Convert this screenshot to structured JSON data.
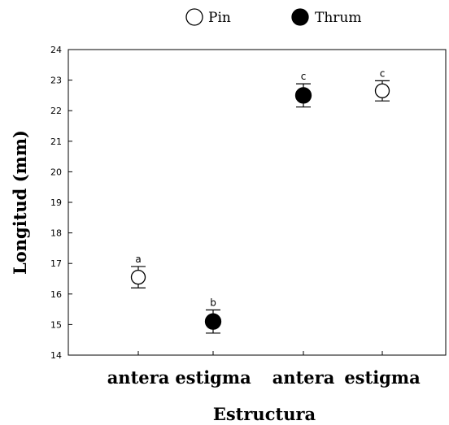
{
  "chart_data": {
    "type": "scatter",
    "title": "",
    "xlabel": "Estructura",
    "ylabel": "Longitud (mm)",
    "ylim": [
      14,
      24
    ],
    "yticks": [
      14,
      15,
      16,
      17,
      18,
      19,
      20,
      21,
      22,
      23,
      24
    ],
    "categories": [
      "antera",
      "estigma",
      "antera",
      "estigma"
    ],
    "grid": false,
    "legend_position": "top-center",
    "series": [
      {
        "name": "Pin",
        "marker": "open-circle",
        "color": "#000000",
        "points": [
          {
            "category_index": 0,
            "y": 16.55,
            "err": 0.35,
            "label": "a"
          },
          {
            "category_index": 3,
            "y": 22.65,
            "err": 0.33,
            "label": "c"
          }
        ]
      },
      {
        "name": "Thrum",
        "marker": "filled-circle",
        "color": "#000000",
        "points": [
          {
            "category_index": 1,
            "y": 15.1,
            "err": 0.38,
            "label": "b"
          },
          {
            "category_index": 2,
            "y": 22.5,
            "err": 0.38,
            "label": "c"
          }
        ]
      }
    ]
  }
}
